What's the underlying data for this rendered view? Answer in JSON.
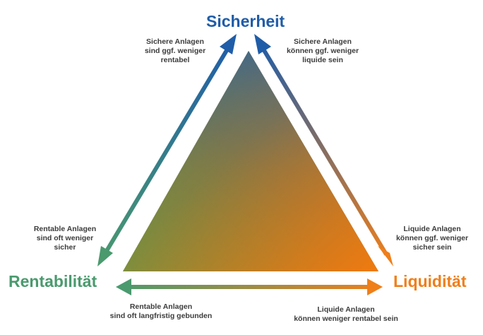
{
  "colors": {
    "sicherheit": "#1f5da8",
    "rentabilitaet": "#4a9a6e",
    "liquiditaet": "#ef7f1a",
    "triangle_center": "#8a6a3a",
    "border": "#ffffff",
    "text": "#3c3c3c"
  },
  "corners": {
    "top": "Sicherheit",
    "left": "Rentabilität",
    "right": "Liquidität"
  },
  "notes": {
    "top_left": [
      "Sichere Anlagen",
      "sind ggf. weniger",
      "rentabel"
    ],
    "top_right": [
      "Sichere Anlagen",
      "können ggf. weniger",
      "liquide sein"
    ],
    "mid_left": [
      "Rentable Anlagen",
      "sind oft weniger",
      "sicher"
    ],
    "mid_right": [
      "Liquide Anlagen",
      "können ggf. weniger",
      "sicher sein"
    ],
    "bottom_left": [
      "Rentable Anlagen",
      "sind oft langfristig gebunden"
    ],
    "bottom_right": [
      "Liquide Anlagen",
      "können weniger rentabel sein"
    ]
  }
}
